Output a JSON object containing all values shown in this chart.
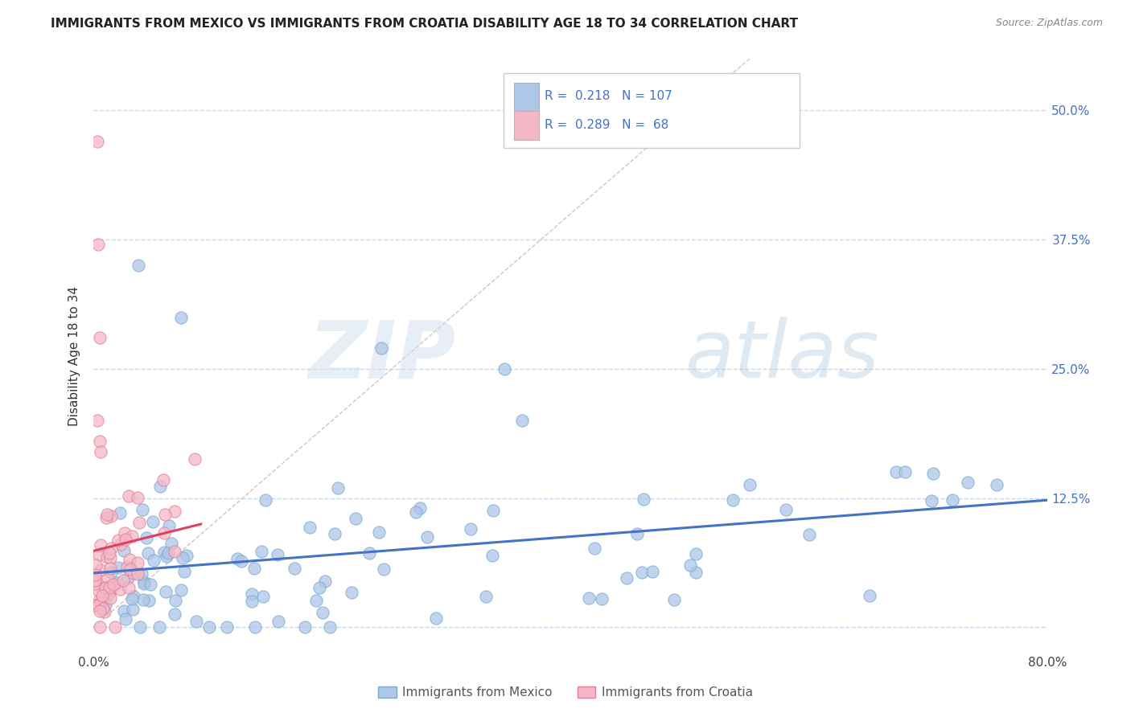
{
  "title": "IMMIGRANTS FROM MEXICO VS IMMIGRANTS FROM CROATIA DISABILITY AGE 18 TO 34 CORRELATION CHART",
  "source": "Source: ZipAtlas.com",
  "ylabel": "Disability Age 18 to 34",
  "xlim": [
    0.0,
    0.8
  ],
  "ylim": [
    -0.025,
    0.55
  ],
  "x_ticks": [
    0.0,
    0.1,
    0.2,
    0.3,
    0.4,
    0.5,
    0.6,
    0.7,
    0.8
  ],
  "x_tick_labels": [
    "0.0%",
    "",
    "",
    "",
    "",
    "",
    "",
    "",
    "80.0%"
  ],
  "y_tick_labels": [
    "",
    "12.5%",
    "25.0%",
    "37.5%",
    "50.0%"
  ],
  "y_ticks": [
    0.0,
    0.125,
    0.25,
    0.375,
    0.5
  ],
  "watermark_zip": "ZIP",
  "watermark_atlas": "atlas",
  "legend_mexico_r": "0.218",
  "legend_mexico_n": "107",
  "legend_croatia_r": "0.289",
  "legend_croatia_n": "68",
  "mexico_fill_color": "#aec6e8",
  "mexico_edge_color": "#7aaad0",
  "croatia_fill_color": "#f4b8c8",
  "croatia_edge_color": "#e08098",
  "mexico_line_color": "#4472c4",
  "croatia_line_color": "#e04060",
  "diagonal_color": "#d0b0b8",
  "background_color": "#ffffff",
  "grid_color": "#c8d8ec",
  "legend_text_color": "#4472c4",
  "title_color": "#222222",
  "source_color": "#888888",
  "ylabel_color": "#333333",
  "bottom_label_color": "#555555"
}
